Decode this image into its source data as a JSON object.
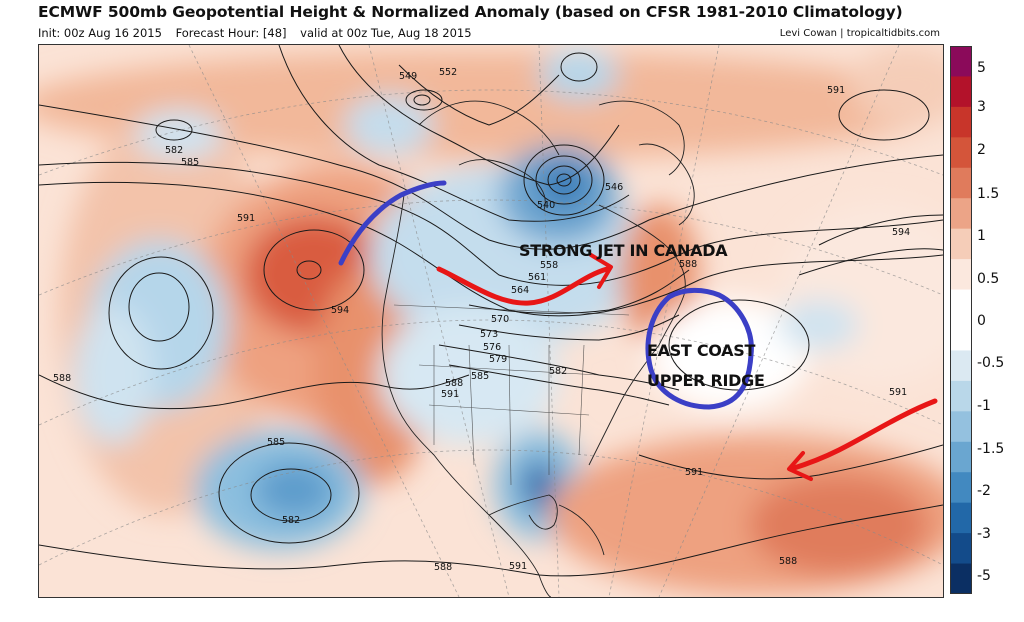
{
  "header": {
    "title": "ECMWF 500mb Geopotential Height & Normalized Anomaly (based on CFSR 1981-2010 Climatology)",
    "init": "Init: 00z Aug 16 2015",
    "forecast_hour": "Forecast Hour: [48]",
    "valid": "valid at 00z Tue, Aug 18 2015",
    "credit": "Levi Cowan | tropicaltidbits.com"
  },
  "colorbar": {
    "labels": [
      "5",
      "3",
      "2",
      "1.5",
      "1",
      "0.5",
      "0",
      "-0.5",
      "-1",
      "-1.5",
      "-2",
      "-3",
      "-5"
    ],
    "colors": [
      "#8b0a5a",
      "#b3122a",
      "#c8352a",
      "#d4553a",
      "#e07b5c",
      "#eca487",
      "#f5cdb8",
      "#fbe8de",
      "#ffffff",
      "#ffffff",
      "#dbe9f2",
      "#b9d7e9",
      "#94c1df",
      "#6aa6d0",
      "#4289c0",
      "#2268a8",
      "#134b8a",
      "#0b2f63"
    ]
  },
  "contour_labels": [
    "549",
    "552",
    "546",
    "540",
    "582",
    "585",
    "591",
    "594",
    "588",
    "558",
    "561",
    "564",
    "570",
    "573",
    "576",
    "579",
    "585",
    "588",
    "591",
    "582",
    "591",
    "594",
    "588",
    "585",
    "582",
    "591",
    "588",
    "591",
    "588",
    "591"
  ],
  "annotations": {
    "jet_text": "STRONG JET IN CANADA",
    "ridge_line1": "EAST COAST",
    "ridge_line2": "UPPER RIDGE"
  },
  "colors": {
    "arrow_blue": "#3b3fc6",
    "arrow_red": "#e81616",
    "warm": "#e07b5c",
    "cold": "#6aa6d0"
  }
}
